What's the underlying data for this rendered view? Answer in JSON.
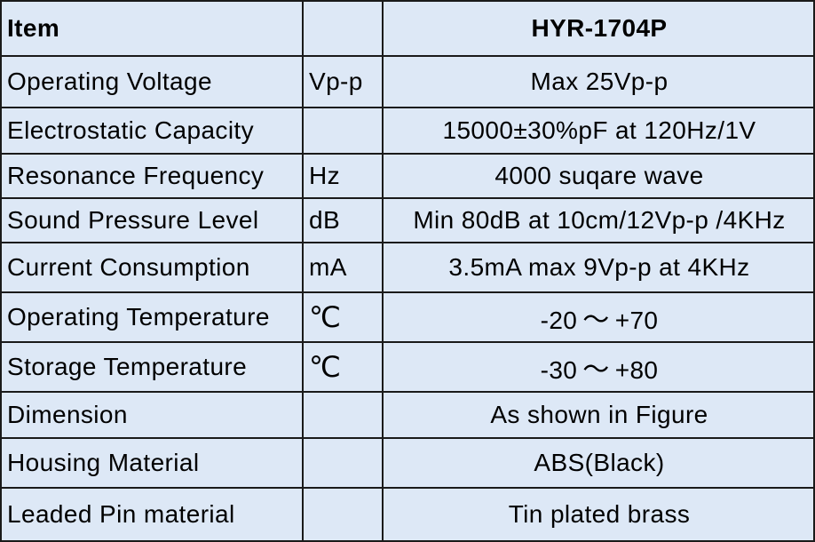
{
  "header": {
    "item": "Item",
    "unit": "",
    "model": "HYR-1704P"
  },
  "rows": [
    {
      "item": "Operating Voltage",
      "unit": "Vp-p",
      "value": "Max 25Vp-p"
    },
    {
      "item": "Electrostatic Capacity",
      "unit": "",
      "value": "15000±30%pF at 120Hz/1V"
    },
    {
      "item": "Resonance Frequency",
      "unit": "Hz",
      "value": "4000 suqare wave"
    },
    {
      "item": "Sound Pressure Level",
      "unit": "dB",
      "value": "Min 80dB at 10cm/12Vp-p /4KHz"
    },
    {
      "item": "Current Consumption",
      "unit": "mA",
      "value": "3.5mA max 9Vp-p at 4KHz"
    },
    {
      "item": "Operating Temperature",
      "unit": "℃",
      "value_min": "-20",
      "value_sep": "～",
      "value_max": "+70"
    },
    {
      "item": "Storage Temperature",
      "unit": "℃",
      "value_min": "-30",
      "value_sep": "～",
      "value_max": "+80"
    },
    {
      "item": "Dimension",
      "unit": "",
      "value": "As shown in Figure"
    },
    {
      "item": "Housing Material",
      "unit": "",
      "value": "ABS(Black)"
    },
    {
      "item": "Leaded Pin material",
      "unit": "",
      "value": "Tin plated brass"
    }
  ]
}
